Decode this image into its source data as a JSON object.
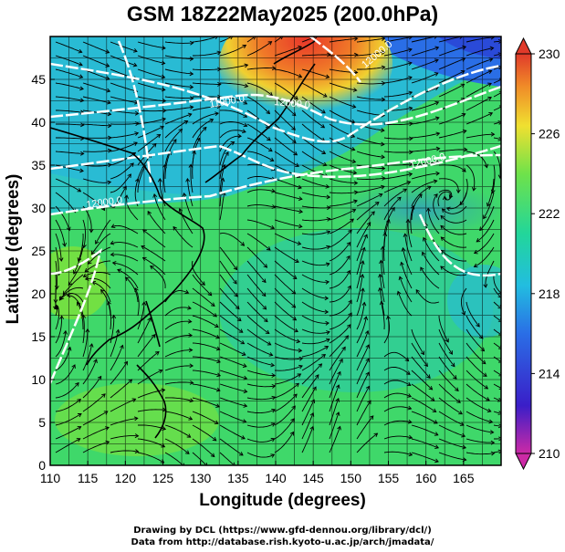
{
  "title": "GSM 18Z22May2025 (200.0hPa)",
  "x_axis": {
    "label": "Longitude (degrees)",
    "range": [
      110,
      170
    ],
    "ticks": [
      110,
      115,
      120,
      125,
      130,
      135,
      140,
      145,
      150,
      155,
      160,
      165
    ]
  },
  "y_axis": {
    "label": "Latitude  (degrees)",
    "range": [
      0,
      50
    ],
    "ticks": [
      0,
      5,
      10,
      15,
      20,
      25,
      30,
      35,
      40,
      45
    ]
  },
  "colorbar": {
    "ticks": [
      230,
      226,
      222,
      218,
      214,
      210
    ],
    "range": [
      210,
      230
    ],
    "colors": [
      "#cc2aa6",
      "#2a1ec8",
      "#2aa0e6",
      "#22d6b4",
      "#6fe24a",
      "#f0e030",
      "#f08a28",
      "#e03a2a"
    ]
  },
  "contour_labels": [
    "12000.0",
    "11900.0",
    "12200.0",
    "12400.0"
  ],
  "credits": {
    "line1": "Drawing by DCL (https://www.gfd-dennou.org/library/dcl/)",
    "line2": "Data from http://database.rish.kyoto-u.ac.jp/arch/jmadata/"
  }
}
